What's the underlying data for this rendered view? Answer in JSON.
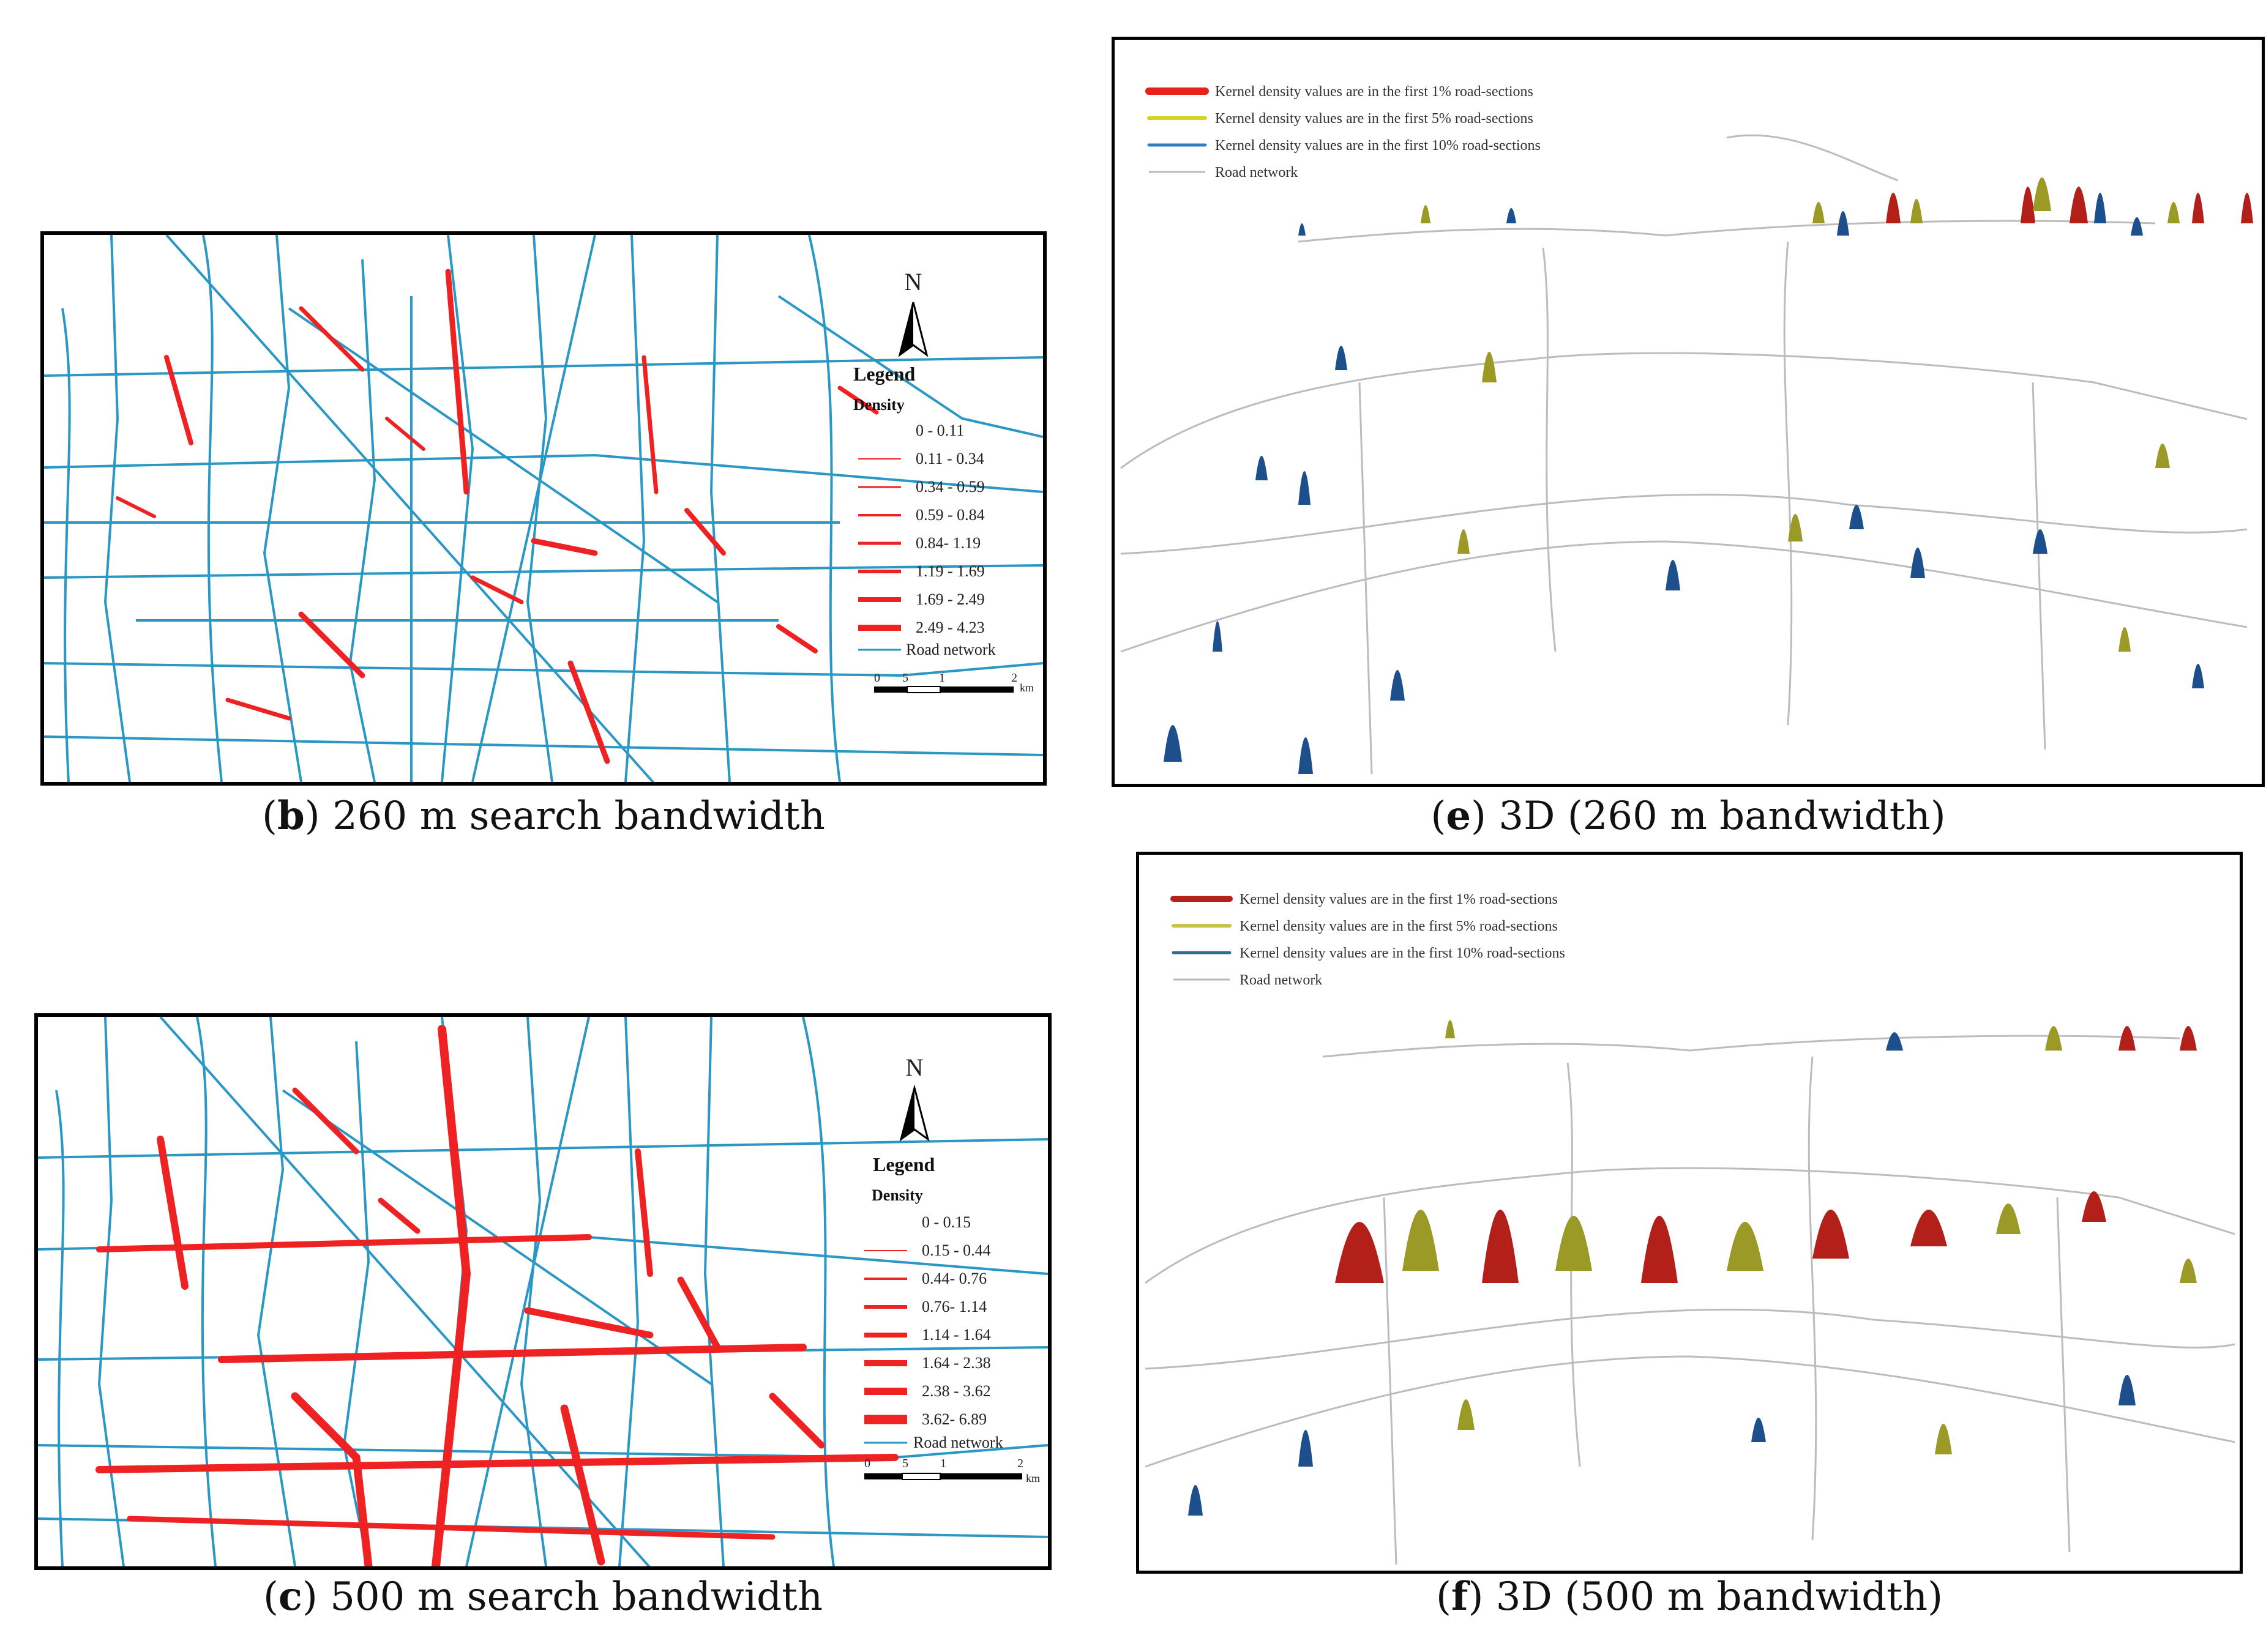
{
  "panels": {
    "b": {
      "caption_letter": "b",
      "caption_text": " 260 m search bandwidth",
      "north": "N",
      "legend_title": "Legend",
      "density_label": "Density",
      "classes": [
        "0 - 0.11",
        "0.11 - 0.34",
        "0.34 - 0.59",
        "0.59 - 0.84",
        "0.84- 1.19",
        "1.19 - 1.69",
        "1.69 - 2.49",
        "2.49 - 4.23"
      ],
      "road_label": "Road network",
      "scale": {
        "ticks": [
          "0",
          "5",
          "1",
          "2"
        ],
        "unit": "km"
      }
    },
    "c": {
      "caption_letter": "c",
      "caption_text": " 500 m search bandwidth",
      "north": "N",
      "legend_title": "Legend",
      "density_label": "Density",
      "classes": [
        "0 - 0.15",
        "0.15 - 0.44",
        "0.44- 0.76",
        "0.76- 1.14",
        "1.14 - 1.64",
        "1.64 - 2.38",
        "2.38 - 3.62",
        "3.62- 6.89"
      ],
      "road_label": "Road network",
      "scale": {
        "ticks": [
          "0",
          "5",
          "1",
          "2"
        ],
        "unit": "km"
      }
    },
    "e": {
      "caption_letter": "e",
      "caption_text": " 3D (260 m bandwidth)",
      "legend": [
        {
          "label": "Kernel density values are in the first 1%  road-sections",
          "color": "#e8221b"
        },
        {
          "label": "Kernel density values are in the first 5%  road-sections",
          "color": "#d9d21a"
        },
        {
          "label": "Kernel density values are in the first 10%  road-sections",
          "color": "#2f7fc4"
        },
        {
          "label": "Road network",
          "color": "#b9b9b9"
        }
      ]
    },
    "f": {
      "caption_letter": "f",
      "caption_text": " 3D (500 m bandwidth)",
      "legend": [
        {
          "label": "Kernel density values are in the first 1%  road-sections",
          "color": "#b5221c"
        },
        {
          "label": "Kernel density values are in the first 5%  road-sections",
          "color": "#c7c44c"
        },
        {
          "label": "Kernel density values are in the first 10%  road-sections",
          "color": "#2e6d8c"
        },
        {
          "label": "Road network",
          "color": "#b9b9b9"
        }
      ]
    }
  },
  "colors": {
    "road_2d": "#2a97c4",
    "density_red": "#ee2222",
    "spike_red": "#b3201a",
    "spike_yellow": "#9b9a26",
    "spike_blue": "#1d4f8d",
    "road_3d": "#bcbcbc"
  }
}
